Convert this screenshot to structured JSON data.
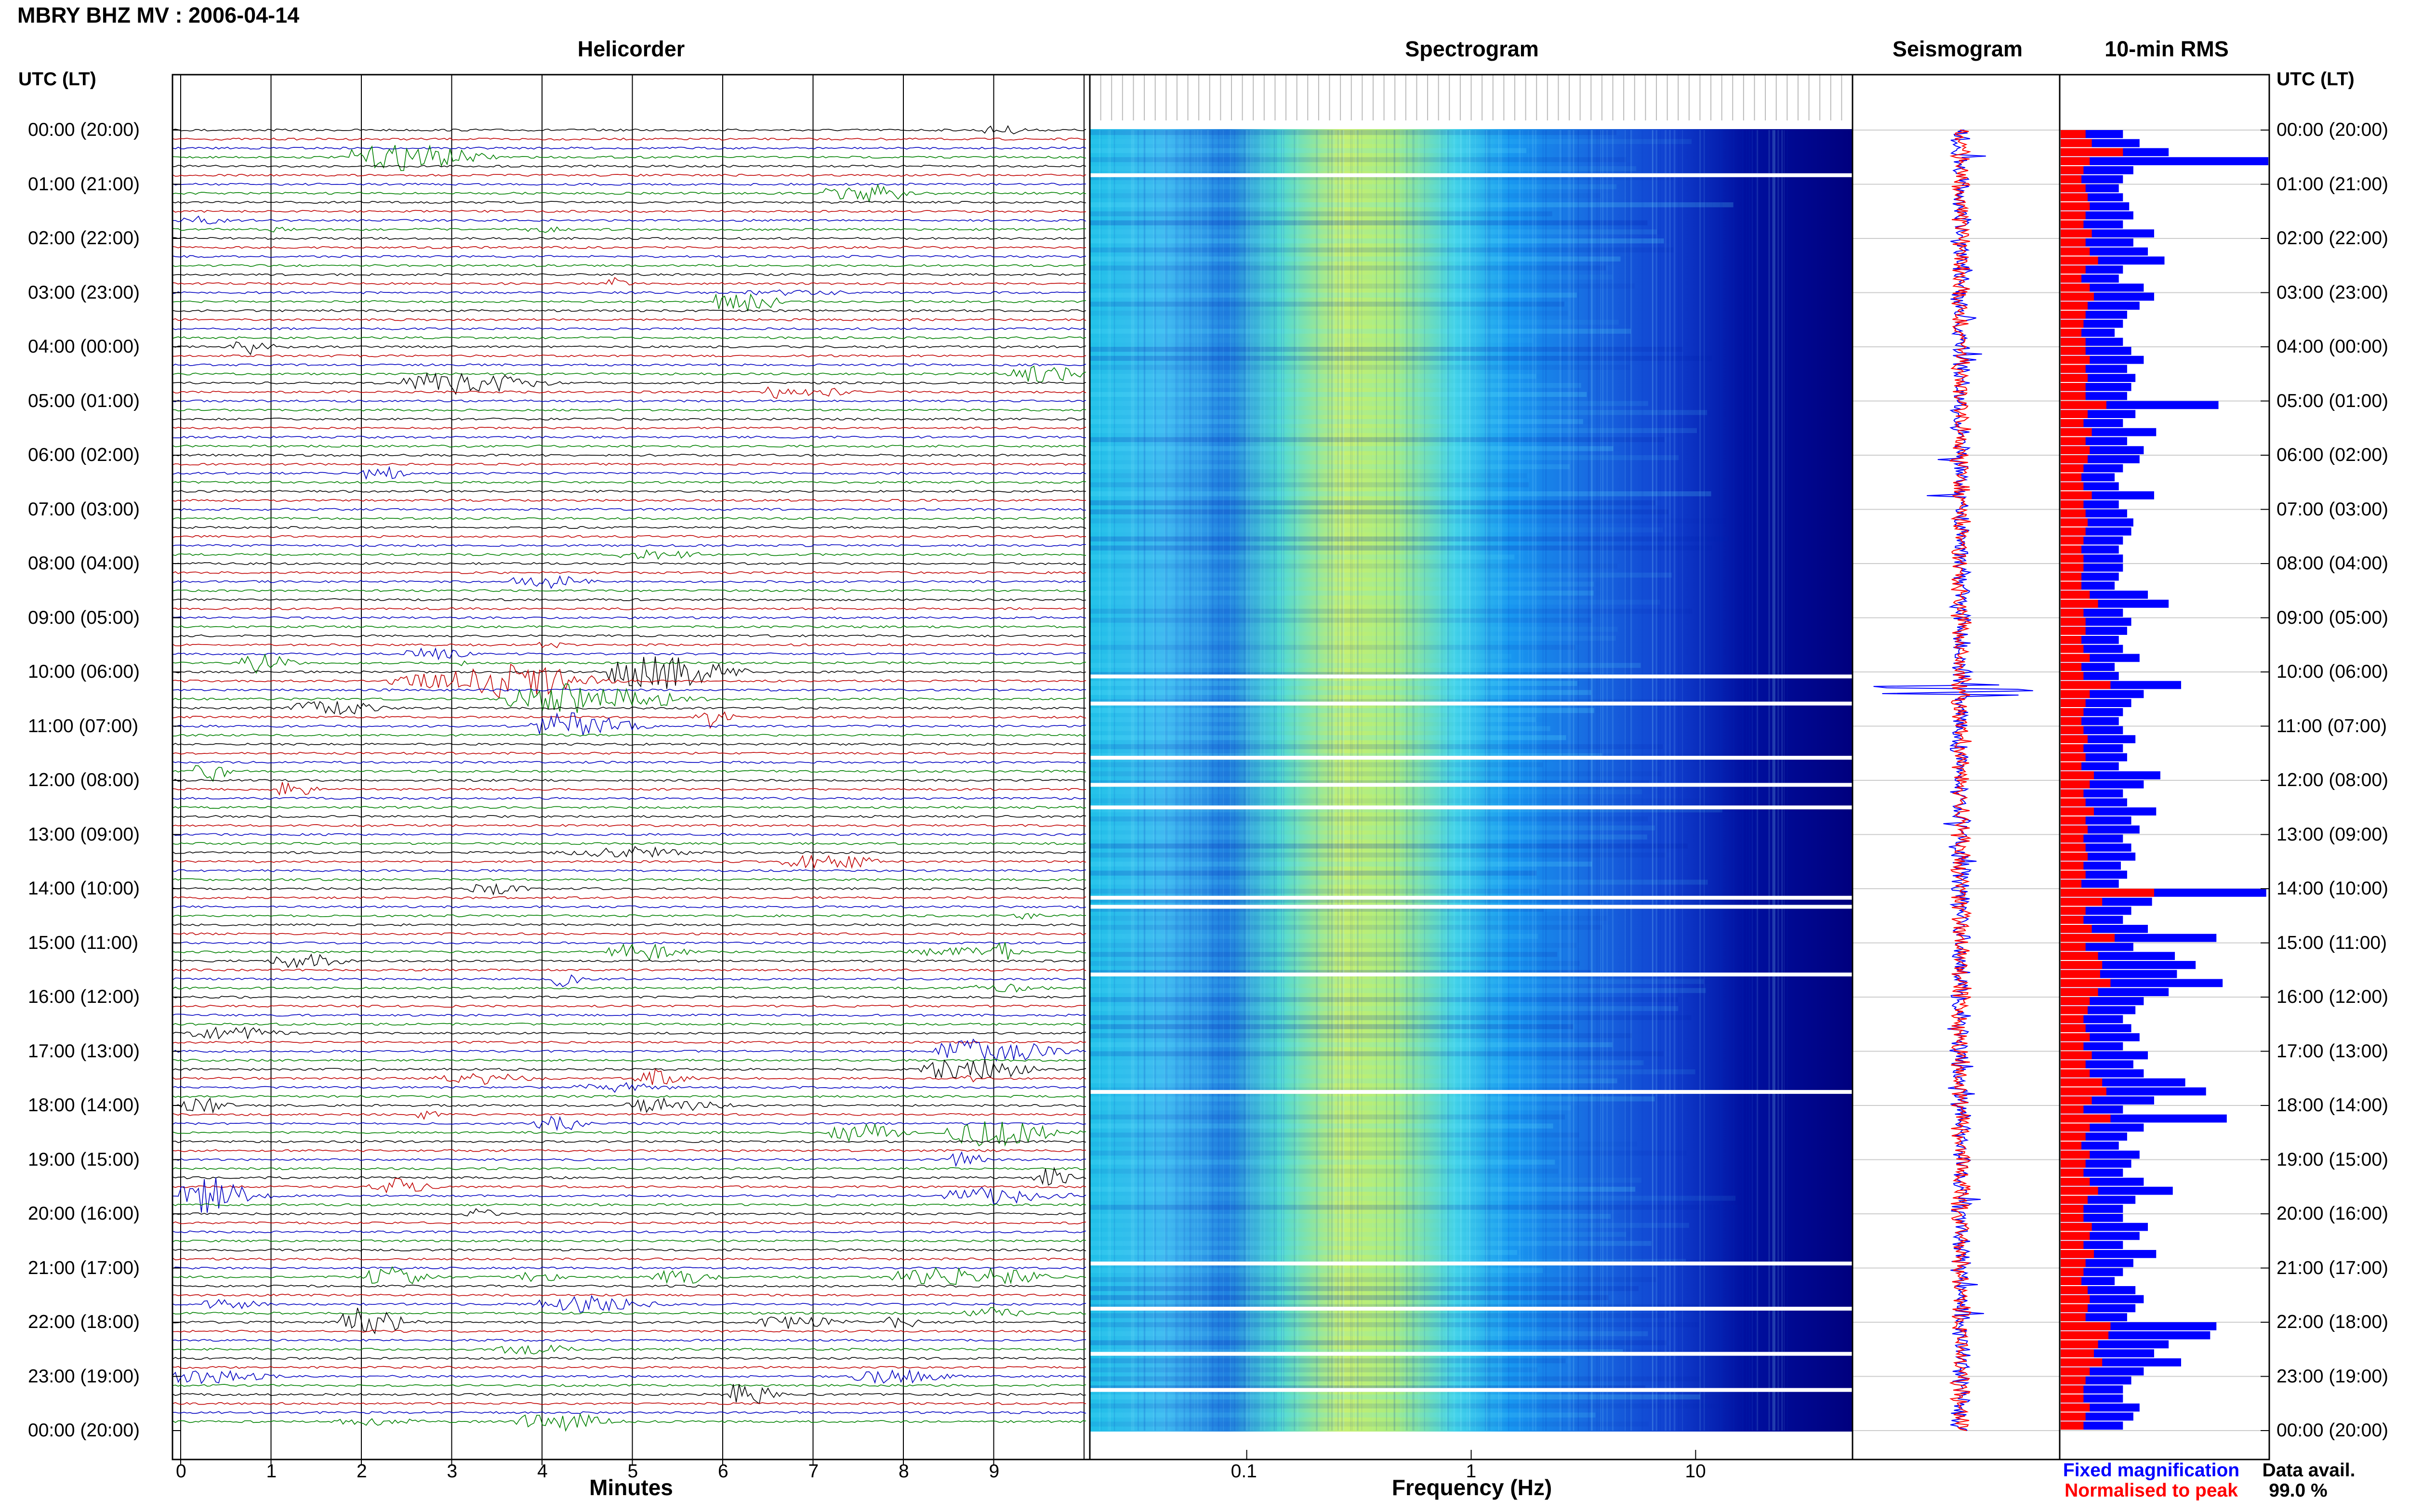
{
  "station_title": "MBRY BHZ MV : 2006-04-14",
  "panels": {
    "helicorder": "Helicorder",
    "spectrogram": "Spectrogram",
    "seismogram": "Seismogram",
    "rms": "10-min RMS"
  },
  "utc_label_left": "UTC (LT)",
  "utc_label_right": "UTC (LT)",
  "time_labels": [
    "00:00 (20:00)",
    "01:00 (21:00)",
    "02:00 (22:00)",
    "03:00 (23:00)",
    "04:00 (00:00)",
    "05:00 (01:00)",
    "06:00 (02:00)",
    "07:00 (03:00)",
    "08:00 (04:00)",
    "09:00 (05:00)",
    "10:00 (06:00)",
    "11:00 (07:00)",
    "12:00 (08:00)",
    "13:00 (09:00)",
    "14:00 (10:00)",
    "15:00 (11:00)",
    "16:00 (12:00)",
    "17:00 (13:00)",
    "18:00 (14:00)",
    "19:00 (15:00)",
    "20:00 (16:00)",
    "21:00 (17:00)",
    "22:00 (18:00)",
    "23:00 (19:00)",
    "00:00 (20:00)"
  ],
  "minute_ticks": [
    "0",
    "1",
    "2",
    "3",
    "4",
    "5",
    "6",
    "7",
    "8",
    "9"
  ],
  "xlabel_minutes": "Minutes",
  "freq_ticks": [
    "0.1",
    "1",
    "10"
  ],
  "xlabel_frequency": "Frequency (Hz)",
  "legend": {
    "fixed": "Fixed magnification",
    "normalised": "Normalised to peak",
    "fixed_color": "#0000ff",
    "normalised_color": "#ff0000"
  },
  "data_avail_label": "Data avail.",
  "data_avail_value": "99.0 %",
  "chart_data": [
    {
      "type": "line",
      "panel": "Helicorder",
      "xlabel": "Minutes",
      "xlim": [
        0,
        10
      ],
      "rows": 144,
      "trace_colors": [
        "#000000",
        "#c00000",
        "#0000c0",
        "#008000"
      ],
      "notable_events_utc": [
        "00:30",
        "03:00",
        "05:00",
        "10:00",
        "10:40",
        "16:00",
        "18:00",
        "19:40",
        "21:40",
        "23:50"
      ]
    },
    {
      "type": "heatmap",
      "panel": "Spectrogram",
      "xlabel": "Frequency (Hz)",
      "xscale": "log",
      "xlim": [
        0.02,
        50
      ],
      "colormap": [
        "#00007f",
        "#0000ff",
        "#00a0ff",
        "#00ffff",
        "#80ff80",
        "#ffff00"
      ],
      "gaps_utc": [
        "00:50",
        "10:05",
        "10:35",
        "11:35",
        "12:05",
        "12:30",
        "14:10",
        "14:20",
        "15:35",
        "17:45",
        "20:55",
        "21:45",
        "22:35",
        "23:15"
      ]
    },
    {
      "type": "line",
      "panel": "Seismogram",
      "series": [
        {
          "name": "Fixed magnification"
        },
        {
          "name": "Normalised to peak"
        }
      ],
      "peak_utc": "10:20"
    },
    {
      "type": "bar",
      "panel": "10-min RMS",
      "orientation": "horizontal",
      "intervals_per_hour": 6,
      "hours": 24,
      "series": [
        {
          "name": "Fixed magnification",
          "values": [
            0.3,
            0.38,
            0.52,
            1.0,
            0.35,
            0.3,
            0.28,
            0.3,
            0.33,
            0.35,
            0.3,
            0.45,
            0.35,
            0.42,
            0.5,
            0.3,
            0.28,
            0.4,
            0.45,
            0.38,
            0.32,
            0.3,
            0.26,
            0.3,
            0.34,
            0.4,
            0.32,
            0.36,
            0.34,
            0.32,
            0.76,
            0.36,
            0.3,
            0.46,
            0.32,
            0.4,
            0.38,
            0.3,
            0.26,
            0.28,
            0.45,
            0.28,
            0.32,
            0.35,
            0.34,
            0.3,
            0.28,
            0.3,
            0.3,
            0.28,
            0.26,
            0.42,
            0.52,
            0.3,
            0.34,
            0.32,
            0.28,
            0.3,
            0.38,
            0.26,
            0.28,
            0.58,
            0.4,
            0.34,
            0.3,
            0.28,
            0.3,
            0.36,
            0.3,
            0.32,
            0.28,
            0.48,
            0.4,
            0.3,
            0.32,
            0.46,
            0.34,
            0.38,
            0.3,
            0.34,
            0.36,
            0.29,
            0.32,
            0.28,
            0.99,
            0.44,
            0.34,
            0.3,
            0.42,
            0.75,
            0.35,
            0.55,
            0.65,
            0.56,
            0.78,
            0.52,
            0.4,
            0.36,
            0.3,
            0.34,
            0.38,
            0.3,
            0.42,
            0.35,
            0.4,
            0.6,
            0.7,
            0.45,
            0.3,
            0.8,
            0.4,
            0.32,
            0.28,
            0.38,
            0.34,
            0.3,
            0.4,
            0.54,
            0.36,
            0.3,
            0.3,
            0.42,
            0.38,
            0.3,
            0.46,
            0.35,
            0.3,
            0.26,
            0.36,
            0.4,
            0.36,
            0.32,
            0.75,
            0.72,
            0.52,
            0.45,
            0.58,
            0.4,
            0.34,
            0.3,
            0.3,
            0.38,
            0.35,
            0.3
          ]
        },
        {
          "name": "Normalised to peak",
          "values": [
            0.12,
            0.15,
            0.3,
            0.14,
            0.11,
            0.1,
            0.12,
            0.13,
            0.14,
            0.12,
            0.11,
            0.15,
            0.12,
            0.14,
            0.18,
            0.12,
            0.1,
            0.14,
            0.16,
            0.13,
            0.12,
            0.11,
            0.1,
            0.12,
            0.12,
            0.14,
            0.12,
            0.13,
            0.12,
            0.12,
            0.22,
            0.13,
            0.11,
            0.15,
            0.12,
            0.14,
            0.13,
            0.11,
            0.1,
            0.11,
            0.15,
            0.11,
            0.12,
            0.13,
            0.12,
            0.11,
            0.1,
            0.11,
            0.11,
            0.1,
            0.1,
            0.14,
            0.18,
            0.11,
            0.12,
            0.12,
            0.1,
            0.11,
            0.14,
            0.1,
            0.11,
            0.24,
            0.14,
            0.12,
            0.11,
            0.1,
            0.11,
            0.13,
            0.11,
            0.12,
            0.1,
            0.16,
            0.14,
            0.11,
            0.12,
            0.16,
            0.12,
            0.13,
            0.11,
            0.12,
            0.13,
            0.11,
            0.12,
            0.1,
            0.45,
            0.2,
            0.12,
            0.11,
            0.15,
            0.26,
            0.12,
            0.18,
            0.2,
            0.19,
            0.24,
            0.18,
            0.14,
            0.13,
            0.11,
            0.12,
            0.14,
            0.11,
            0.15,
            0.12,
            0.14,
            0.2,
            0.22,
            0.15,
            0.11,
            0.24,
            0.14,
            0.12,
            0.1,
            0.14,
            0.12,
            0.11,
            0.14,
            0.18,
            0.13,
            0.11,
            0.11,
            0.15,
            0.14,
            0.11,
            0.16,
            0.12,
            0.11,
            0.1,
            0.13,
            0.14,
            0.13,
            0.12,
            0.24,
            0.23,
            0.18,
            0.16,
            0.2,
            0.14,
            0.12,
            0.11,
            0.11,
            0.14,
            0.12,
            0.11
          ]
        }
      ]
    }
  ]
}
